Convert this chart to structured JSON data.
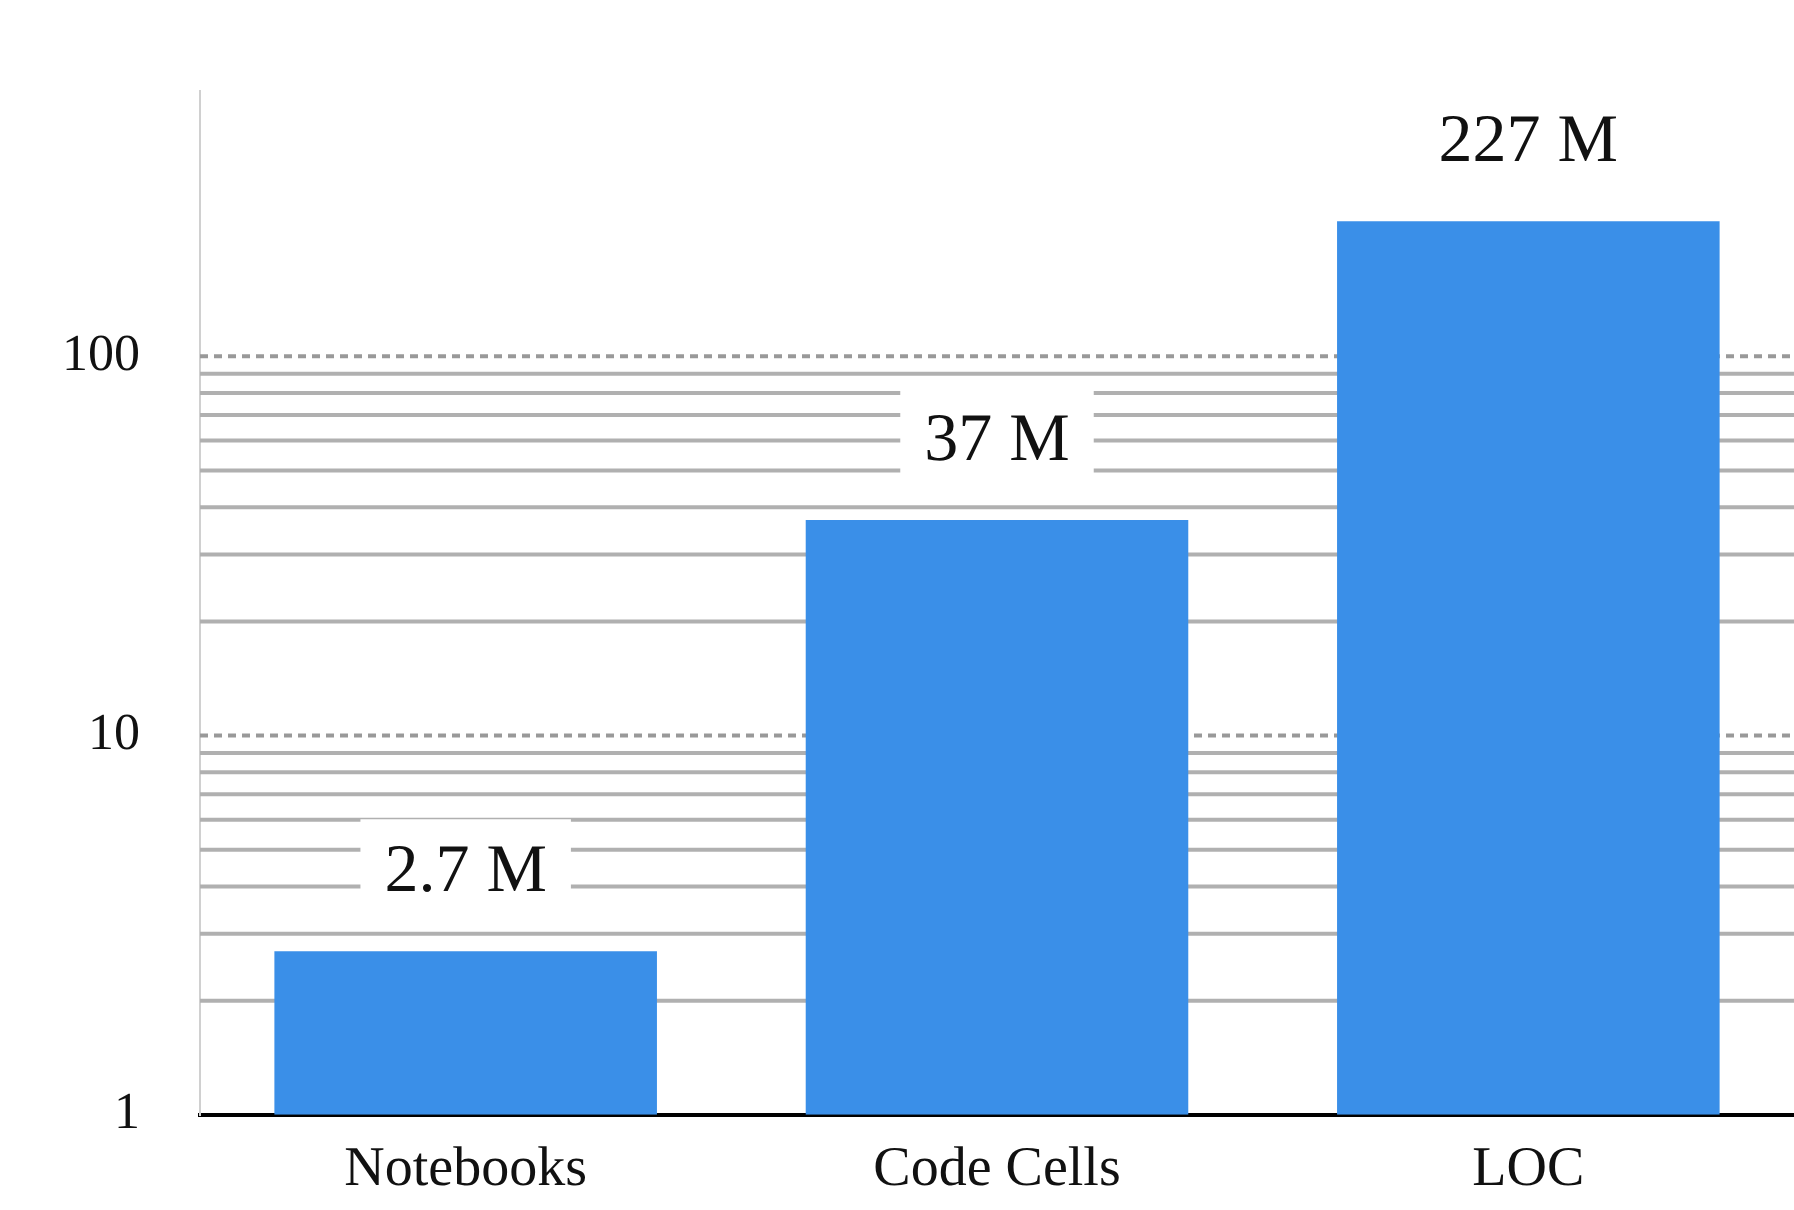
{
  "chart_data": {
    "type": "bar",
    "categories": [
      "Notebooks",
      "Code Cells",
      "LOC"
    ],
    "values": [
      2.7,
      37,
      227
    ],
    "value_labels": [
      "2.7 M",
      "37 M",
      "227 M"
    ],
    "color": "#3a8fe8",
    "log": true,
    "ylim": [
      1,
      500
    ],
    "yticks": [
      1,
      {
        "value": 2,
        "label": null
      },
      {
        "value": 3,
        "label": null
      },
      {
        "value": 4,
        "label": null
      },
      {
        "value": 5,
        "label": null
      },
      {
        "value": 6,
        "label": null
      },
      {
        "value": 7,
        "label": null
      },
      {
        "value": 8,
        "label": null
      },
      {
        "value": 9,
        "label": null
      },
      10,
      {
        "value": 20,
        "label": null
      },
      {
        "value": 30,
        "label": null
      },
      {
        "value": 40,
        "label": null
      },
      {
        "value": 50,
        "label": null
      },
      {
        "value": 60,
        "label": null
      },
      {
        "value": 70,
        "label": null
      },
      {
        "value": 80,
        "label": null
      },
      {
        "value": 90,
        "label": null
      },
      100
    ],
    "grid": true,
    "legend": false
  }
}
